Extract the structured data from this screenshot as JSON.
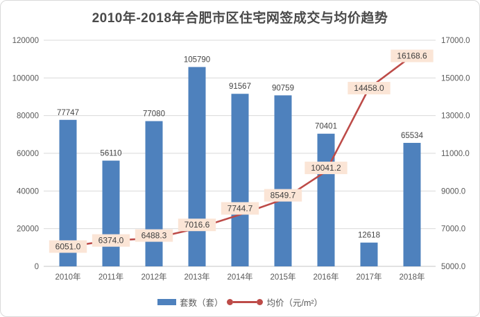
{
  "title": "2010年-2018年合肥市区住宅网签成交与均价趋势",
  "chart_data": {
    "type": "bar+line combo",
    "categories": [
      "2010年",
      "2011年",
      "2012年",
      "2013年",
      "2014年",
      "2015年",
      "2016年",
      "2017年",
      "2018年"
    ],
    "series": [
      {
        "name": "套数（套）",
        "type": "bar",
        "axis": "left",
        "values": [
          77747,
          56110,
          77080,
          105790,
          91567,
          90759,
          70401,
          12618,
          65534
        ]
      },
      {
        "name": "均价（元/m²）",
        "type": "line",
        "axis": "right",
        "values": [
          6051.0,
          6374.0,
          6488.3,
          7016.6,
          7744.7,
          8549.7,
          10041.2,
          14458.0,
          16168.6
        ]
      }
    ],
    "left_axis": {
      "min": 0,
      "max": 120000,
      "step": 20000,
      "ticks": [
        "0",
        "20000",
        "40000",
        "60000",
        "80000",
        "100000",
        "120000"
      ]
    },
    "right_axis": {
      "min": 5000,
      "max": 17000,
      "step": 2000,
      "ticks": [
        "5000.0",
        "7000.0",
        "9000.0",
        "11000.0",
        "13000.0",
        "15000.0",
        "17000.0"
      ]
    },
    "grid": true,
    "legend_position": "bottom"
  },
  "colors": {
    "bar": "#4e81bd",
    "line": "#bd4b48",
    "price_label_bg": "#fbe5d6",
    "price_label_text": "#3f3f3f",
    "bar_label_text": "#444444",
    "axis_text": "#595959",
    "gridline": "#d9d9d9",
    "axis_line": "#c6c6c6",
    "title": "#4a4a4a"
  }
}
